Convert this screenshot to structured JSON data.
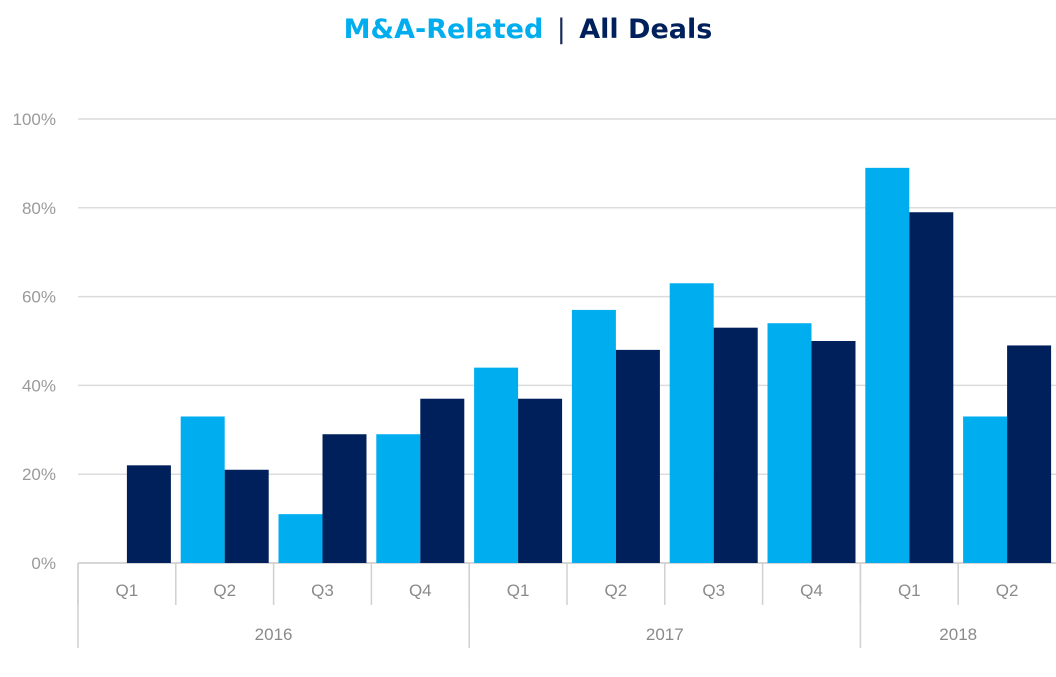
{
  "chart_data": {
    "type": "bar",
    "title_parts": [
      {
        "text": "M&A-Related",
        "color": "#00aeef"
      },
      {
        "text": "All Deals",
        "color": "#00205b"
      }
    ],
    "title_separator": "|",
    "yticks": [
      "0%",
      "20%",
      "40%",
      "60%",
      "80%",
      "100%"
    ],
    "ylim": [
      0,
      100
    ],
    "grid": true,
    "categories": [
      "Q1",
      "Q2",
      "Q3",
      "Q4",
      "Q1",
      "Q2",
      "Q3",
      "Q4",
      "Q1",
      "Q2"
    ],
    "groups": [
      {
        "label": "2016",
        "count": 4
      },
      {
        "label": "2017",
        "count": 4
      },
      {
        "label": "2018",
        "count": 2
      }
    ],
    "series": [
      {
        "name": "M&A-Related",
        "color": "#00aeef",
        "values": [
          0,
          33,
          11,
          29,
          44,
          57,
          63,
          54,
          89,
          33
        ]
      },
      {
        "name": "All Deals",
        "color": "#00205b",
        "values": [
          22,
          21,
          29,
          37,
          37,
          48,
          53,
          50,
          79,
          49
        ]
      }
    ]
  }
}
